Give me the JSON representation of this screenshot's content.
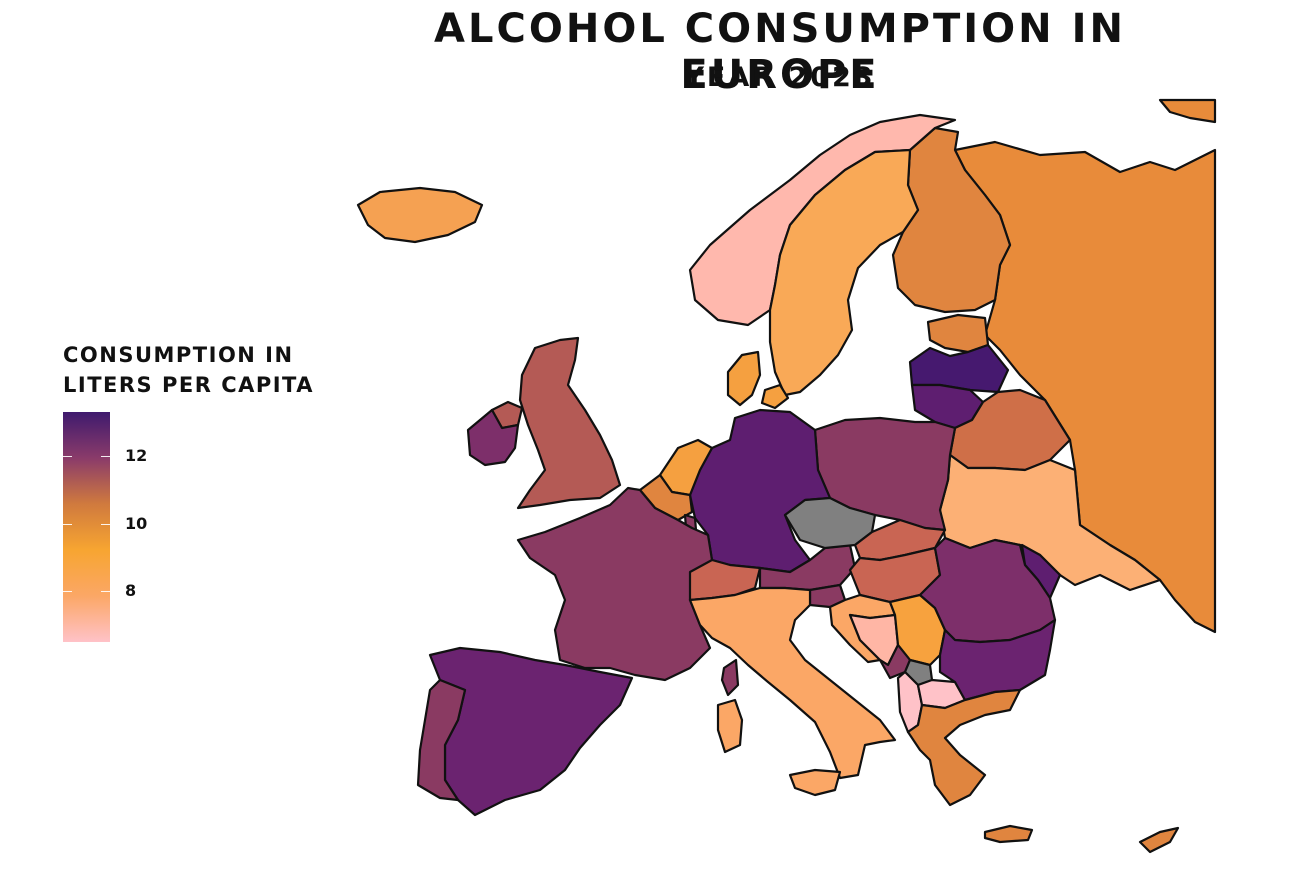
{
  "title": "Alcohol consumption in Europe",
  "subtitle": "Year 2023",
  "legend": {
    "title_line1": "Consumption in",
    "title_line2": "liters per capita",
    "colors": [
      "#3f1a6e",
      "#8a3b6a",
      "#d07a3e",
      "#f7a531",
      "#fba766",
      "#ffc2c8"
    ],
    "range": [
      6.5,
      13.3
    ],
    "ticks": [
      {
        "value": 12,
        "label": "12"
      },
      {
        "value": 10,
        "label": "10"
      },
      {
        "value": 8,
        "label": "8"
      }
    ]
  },
  "colors": {
    "no_data": "#808080",
    "background": "#ffffff",
    "border": "#111111"
  },
  "map_data": [
    {
      "country": "Iceland",
      "color": "#f5a152"
    },
    {
      "country": "Norway",
      "color": "#ffb8ad"
    },
    {
      "country": "Sweden",
      "color": "#f9a957"
    },
    {
      "country": "Finland",
      "color": "#e0853f"
    },
    {
      "country": "Russia",
      "color": "#e88b3a"
    },
    {
      "country": "Estonia",
      "color": "#e0853f"
    },
    {
      "country": "Latvia",
      "color": "#46196f"
    },
    {
      "country": "Lithuania",
      "color": "#5e1e70"
    },
    {
      "country": "Belarus",
      "color": "#cf6f48"
    },
    {
      "country": "Ukraine",
      "color": "#fcb075"
    },
    {
      "country": "Moldova",
      "color": "#5e1e70"
    },
    {
      "country": "Poland",
      "color": "#8a3a62"
    },
    {
      "country": "Germany",
      "color": "#5e1e70"
    },
    {
      "country": "Denmark",
      "color": "#f5a040"
    },
    {
      "country": "Netherlands",
      "color": "#f5a040"
    },
    {
      "country": "Belgium",
      "color": "#e0853f"
    },
    {
      "country": "Luxembourg",
      "color": "#8a3a62"
    },
    {
      "country": "France",
      "color": "#8a3a62"
    },
    {
      "country": "United Kingdom",
      "color": "#b45a55"
    },
    {
      "country": "Ireland",
      "color": "#7d2f6a"
    },
    {
      "country": "Northern Ireland",
      "color": "#b45a55"
    },
    {
      "country": "Spain",
      "color": "#6b2370"
    },
    {
      "country": "Portugal",
      "color": "#8a3a62"
    },
    {
      "country": "Switzerland",
      "color": "#c96553"
    },
    {
      "country": "Austria",
      "color": "#8a3a62"
    },
    {
      "country": "Czechia",
      "color": "#808080"
    },
    {
      "country": "Slovakia",
      "color": "#c96553"
    },
    {
      "country": "Hungary",
      "color": "#c96553"
    },
    {
      "country": "Slovenia",
      "color": "#8a3a62"
    },
    {
      "country": "Croatia",
      "color": "#fba766"
    },
    {
      "country": "Bosnia and Herzegovina",
      "color": "#ffb6a5"
    },
    {
      "country": "Serbia",
      "color": "#f7a23e"
    },
    {
      "country": "Montenegro",
      "color": "#8a3a62"
    },
    {
      "country": "Kosovo",
      "color": "#808080"
    },
    {
      "country": "Albania",
      "color": "#ffc2c8"
    },
    {
      "country": "North Macedonia",
      "color": "#ffc2c8"
    },
    {
      "country": "Romania",
      "color": "#7d2f6a"
    },
    {
      "country": "Bulgaria",
      "color": "#6b2370"
    },
    {
      "country": "Greece",
      "color": "#e0853f"
    },
    {
      "country": "Italy",
      "color": "#fba766"
    },
    {
      "country": "Cyprus",
      "color": "#e0853f"
    }
  ]
}
